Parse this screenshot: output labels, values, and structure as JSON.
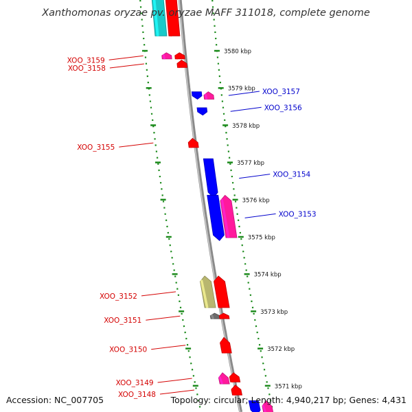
{
  "header": {
    "title": "Xanthomonas oryzae pv. oryzae MAFF 311018, complete genome"
  },
  "footer": {
    "accession": "Accession: NC_007705",
    "topology": "Topology: circular; Length: 4,940,217 bp; Genes: 4,431"
  },
  "colors": {
    "forward_gene": "#ff0000",
    "reverse_gene": "#0000ff",
    "magenta_gene": "#ff1a9c",
    "cyan_gene": "#19c9c9",
    "olive_gene": "#b8b66f",
    "gray_gene": "#6b6b6b",
    "backbone": "#8a8a8a",
    "inner_ruler": "#1b8a1b",
    "outer_ruler": "#1b8a1b",
    "forward_label": "#d40000",
    "reverse_label": "#0000cc"
  },
  "scale": {
    "unit": "kbp",
    "ticks": [
      {
        "label": "3580 kbp",
        "kbp": 3580
      },
      {
        "label": "3579 kbp",
        "kbp": 3579
      },
      {
        "label": "3578 kbp",
        "kbp": 3578
      },
      {
        "label": "3577 kbp",
        "kbp": 3577
      },
      {
        "label": "3576 kbp",
        "kbp": 3576
      },
      {
        "label": "3575 kbp",
        "kbp": 3575
      },
      {
        "label": "3574 kbp",
        "kbp": 3574
      },
      {
        "label": "3573 kbp",
        "kbp": 3573
      },
      {
        "label": "3572 kbp",
        "kbp": 3572
      },
      {
        "label": "3571 kbp",
        "kbp": 3571
      }
    ]
  },
  "genes": [
    {
      "id": "cyan-top",
      "label": "",
      "strand": "forward",
      "color_key": "cyan_gene",
      "start_kbp": 3580.4,
      "end_kbp": 3581.8
    },
    {
      "id": "red-top",
      "label": "",
      "strand": "forward",
      "color_key": "forward_gene",
      "start_kbp": 3580.4,
      "end_kbp": 3581.8
    },
    {
      "id": "XOO_3159",
      "label": "XOO_3159",
      "strand": "forward",
      "color_key": "magenta_gene",
      "start_kbp": 3579.78,
      "end_kbp": 3579.95
    },
    {
      "id": "red-3159",
      "label": "",
      "strand": "forward",
      "color_key": "forward_gene",
      "start_kbp": 3579.78,
      "end_kbp": 3579.95
    },
    {
      "id": "XOO_3158",
      "label": "XOO_3158",
      "strand": "forward",
      "color_key": "forward_gene",
      "start_kbp": 3579.55,
      "end_kbp": 3579.75
    },
    {
      "id": "XOO_3157",
      "label": "XOO_3157",
      "strand": "reverse",
      "color_key": "reverse_gene",
      "start_kbp": 3578.7,
      "end_kbp": 3578.9
    },
    {
      "id": "magenta-3157",
      "label": "",
      "strand": "forward",
      "color_key": "magenta_gene",
      "start_kbp": 3578.7,
      "end_kbp": 3578.9
    },
    {
      "id": "XOO_3156",
      "label": "XOO_3156",
      "strand": "reverse",
      "color_key": "reverse_gene",
      "start_kbp": 3578.27,
      "end_kbp": 3578.47
    },
    {
      "id": "XOO_3155",
      "label": "XOO_3155",
      "strand": "forward",
      "color_key": "forward_gene",
      "start_kbp": 3577.4,
      "end_kbp": 3577.65
    },
    {
      "id": "XOO_3154",
      "label": "XOO_3154",
      "strand": "reverse",
      "color_key": "reverse_gene",
      "start_kbp": 3576.05,
      "end_kbp": 3577.1
    },
    {
      "id": "XOO_3153",
      "label": "XOO_3153",
      "strand": "reverse",
      "color_key": "reverse_gene",
      "start_kbp": 3574.9,
      "end_kbp": 3576.12
    },
    {
      "id": "magenta-3153",
      "label": "",
      "strand": "forward",
      "color_key": "magenta_gene",
      "start_kbp": 3574.98,
      "end_kbp": 3576.12
    },
    {
      "id": "olive-3152",
      "label": "",
      "strand": "forward",
      "color_key": "olive_gene",
      "start_kbp": 3573.1,
      "end_kbp": 3573.95
    },
    {
      "id": "XOO_3152",
      "label": "XOO_3152",
      "strand": "forward",
      "color_key": "forward_gene",
      "start_kbp": 3573.1,
      "end_kbp": 3573.95
    },
    {
      "id": "gray-3151",
      "label": "",
      "strand": "forward",
      "color_key": "gray_gene",
      "start_kbp": 3572.8,
      "end_kbp": 3572.95
    },
    {
      "id": "XOO_3151",
      "label": "XOO_3151",
      "strand": "forward",
      "color_key": "forward_gene",
      "start_kbp": 3572.8,
      "end_kbp": 3572.95
    },
    {
      "id": "XOO_3150",
      "label": "XOO_3150",
      "strand": "forward",
      "color_key": "forward_gene",
      "start_kbp": 3571.88,
      "end_kbp": 3572.3
    },
    {
      "id": "XOO_3149",
      "label": "XOO_3149",
      "strand": "forward",
      "color_key": "magenta_gene",
      "start_kbp": 3571.05,
      "end_kbp": 3571.35
    },
    {
      "id": "red-3149",
      "label": "",
      "strand": "forward",
      "color_key": "forward_gene",
      "start_kbp": 3571.1,
      "end_kbp": 3571.35
    },
    {
      "id": "XOO_3148",
      "label": "XOO_3148",
      "strand": "forward",
      "color_key": "forward_gene",
      "start_kbp": 3570.75,
      "end_kbp": 3571.02
    },
    {
      "id": "blue-bottom",
      "label": "",
      "strand": "reverse",
      "color_key": "reverse_gene",
      "start_kbp": 3570.2,
      "end_kbp": 3570.6
    },
    {
      "id": "magenta-bottom",
      "label": "",
      "strand": "forward",
      "color_key": "magenta_gene",
      "start_kbp": 3570.2,
      "end_kbp": 3570.6
    }
  ]
}
